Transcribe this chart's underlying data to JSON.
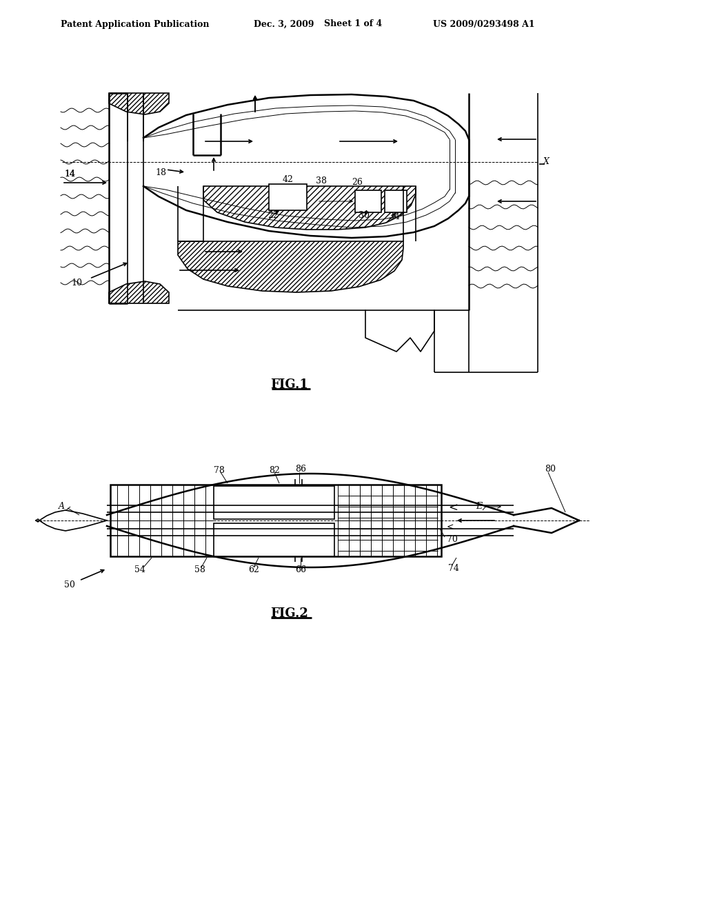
{
  "bg_color": "#ffffff",
  "header_text1": "Patent Application Publication",
  "header_text2": "Dec. 3, 2009",
  "header_text3": "Sheet 1 of 4",
  "header_text4": "US 2009/0293498 A1",
  "fig1_label": "FIG.1",
  "fig2_label": "FIG.2",
  "line_color": "#000000",
  "lw_thin": 0.7,
  "lw_med": 1.2,
  "lw_thick": 1.8,
  "label_fs": 9,
  "header_fs": 9
}
